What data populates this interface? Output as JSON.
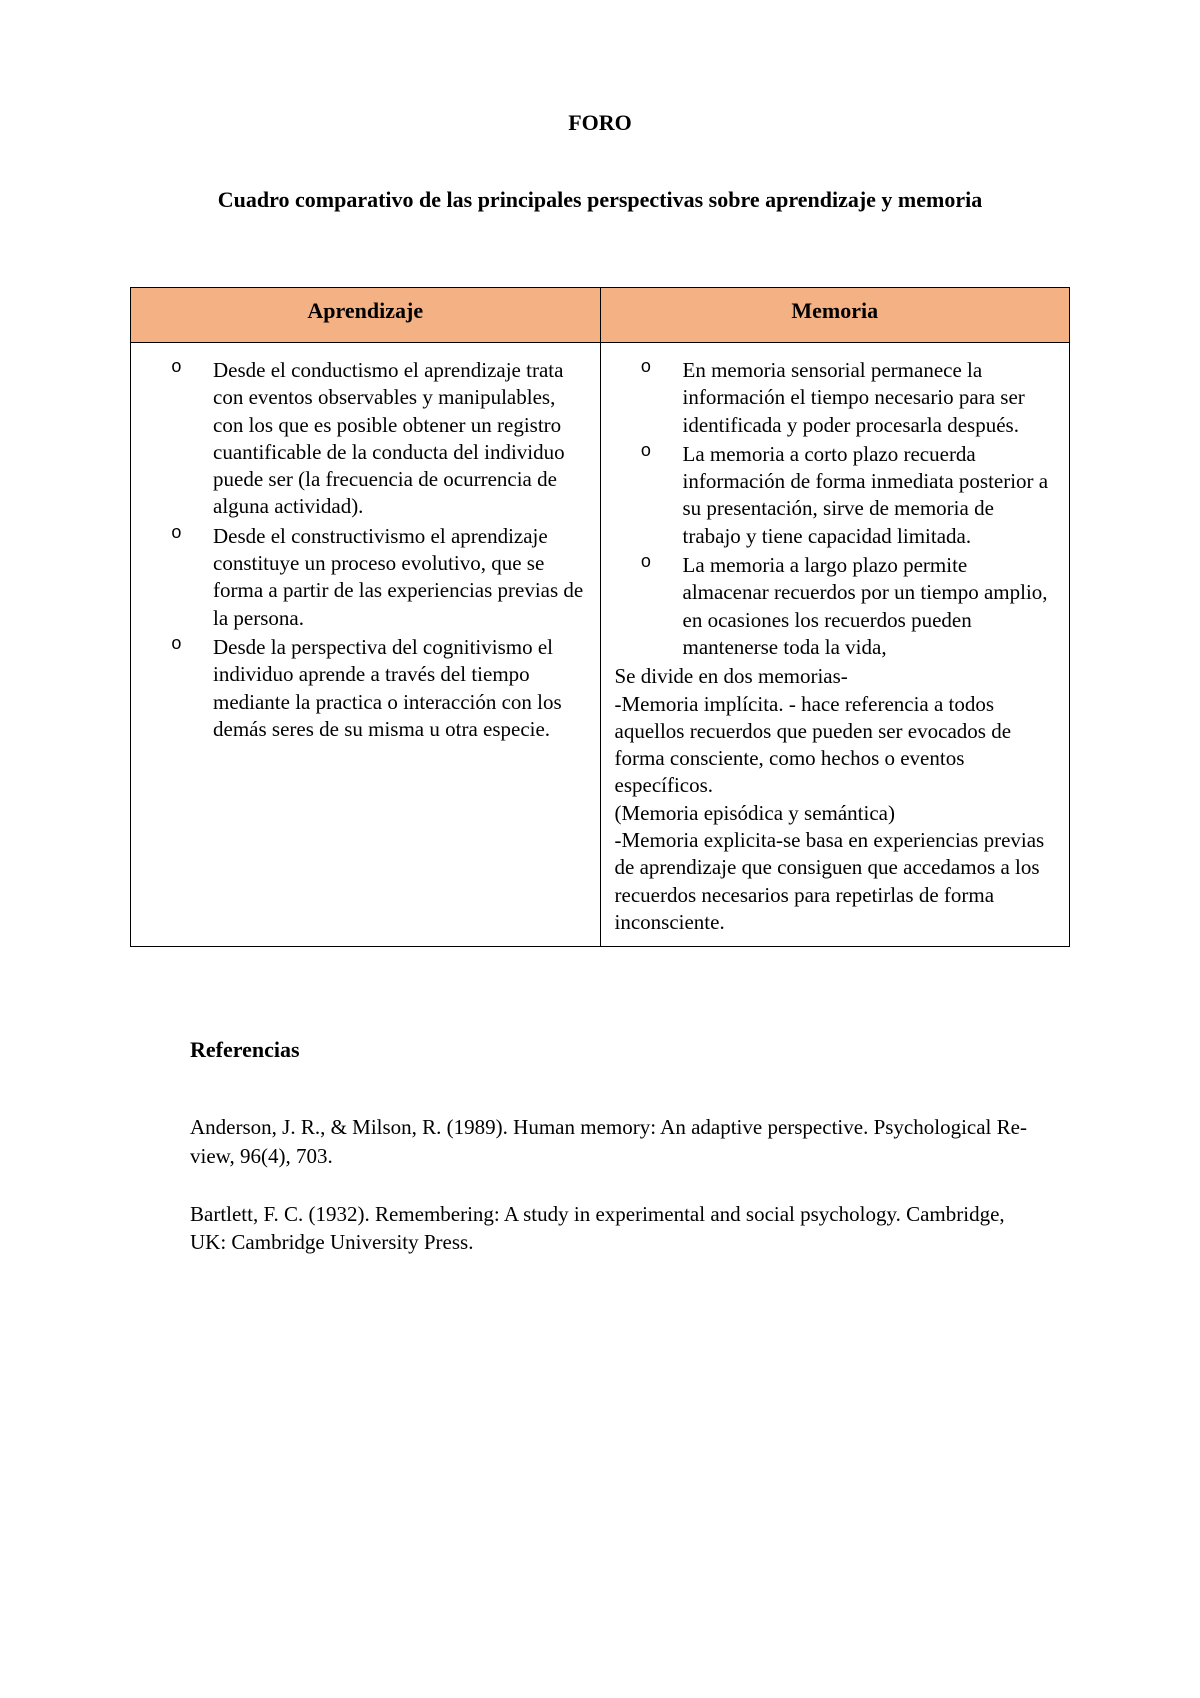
{
  "title": "FORO",
  "subtitle": "Cuadro comparativo de las principales perspectivas sobre aprendizaje y memoria",
  "table": {
    "header_bg": "#f4b183",
    "border_color": "#000000",
    "columns": [
      "Aprendizaje",
      "Memoria"
    ],
    "left": {
      "items": [
        "Desde el conductismo el aprendizaje trata con eventos observables y manipulables, con los que es posible obtener un registro cuantificable de la conducta del individuo puede ser (la frecuencia de ocurrencia de alguna actividad).",
        "Desde el constructivismo el aprendizaje constituye un proceso evolutivo, que se forma a partir de las experiencias previas de la persona.",
        "Desde la perspectiva del cognitivismo el individuo aprende a través del tiempo mediante la practica o interacción con los demás seres de su misma u otra especie."
      ]
    },
    "right": {
      "items": [
        "En memoria sensorial permanece la información el tiempo necesario para ser identificada y poder procesarla después.",
        "La memoria a corto plazo recuerda información de forma inmediata posterior a su presentación, sirve de memoria de trabajo y tiene capacidad limitada.",
        "La memoria a largo plazo permite almacenar recuerdos por un tiempo amplio, en ocasiones los recuerdos pueden mantenerse toda la vida,"
      ],
      "after_list": "Se divide en dos memorias-\n-Memoria implícita. - hace referencia a todos aquellos recuerdos que pueden ser evocados de forma consciente, como hechos o eventos específicos.\n(Memoria episódica y semántica)\n-Memoria explicita-se basa en experiencias previas de aprendizaje que consiguen que accedamos a los recuerdos necesarios para repetirlas de forma inconsciente."
    }
  },
  "references": {
    "heading": "Referencias",
    "entries": [
      "Anderson, J. R., & Milson, R. (1989). Human memory: An adaptive perspective. Psychological Re-view, 96(4), 703.",
      "Bartlett, F. C. (1932). Remembering: A study in experimental and social psychology. Cambridge, UK: Cambridge University Press."
    ]
  }
}
